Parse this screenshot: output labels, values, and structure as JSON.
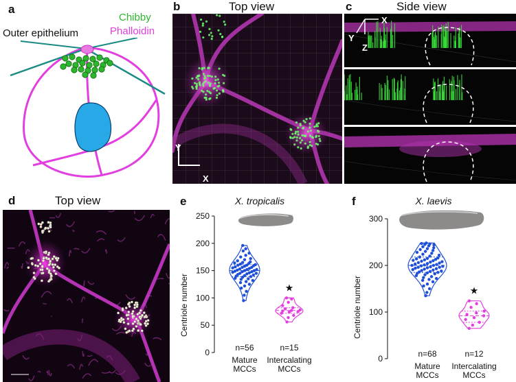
{
  "panels": {
    "a": {
      "label": "a",
      "outer_epithelium": "Outer epithelium",
      "legend_chibby": "Chibby",
      "legend_phalloidin": "Phalloidin",
      "colors": {
        "chibby": "#2db52d",
        "phalloidin": "#e23ee0",
        "epithelium": "#1a8a84",
        "nucleus": "#29a8e8"
      }
    },
    "b": {
      "label": "b",
      "title": "Top view",
      "axis_y": "Y",
      "axis_x": "X"
    },
    "c": {
      "label": "c",
      "title": "Side view",
      "axis_x": "X",
      "axis_y": "Y",
      "axis_z": "Z"
    },
    "d": {
      "label": "d",
      "title": "Top view"
    },
    "e": {
      "label": "e"
    },
    "f": {
      "label": "f"
    }
  },
  "chart_data": [
    {
      "type": "violin",
      "panel": "e",
      "title": "X. tropicalis",
      "ylabel": "Centriole number",
      "ylim": [
        0,
        250
      ],
      "yticks": [
        0,
        50,
        100,
        150,
        200,
        250
      ],
      "categories": [
        "Mature MCCs",
        "Intercalating MCCs"
      ],
      "category_lines": [
        [
          "Mature",
          "MCCs"
        ],
        [
          "Intercalating",
          "MCCs"
        ]
      ],
      "series": [
        {
          "category": "Mature MCCs",
          "n_label": "n=56",
          "color": "#1f4fd6",
          "values": [
            95,
            105,
            112,
            118,
            122,
            125,
            128,
            130,
            132,
            134,
            135,
            136,
            138,
            139,
            140,
            141,
            142,
            143,
            144,
            145,
            145,
            146,
            147,
            148,
            148,
            149,
            150,
            150,
            151,
            152,
            152,
            153,
            154,
            155,
            156,
            156,
            157,
            158,
            159,
            160,
            160,
            161,
            162,
            163,
            164,
            165,
            166,
            168,
            170,
            172,
            175,
            178,
            182,
            186,
            190,
            196
          ]
        },
        {
          "category": "Intercalating MCCs",
          "n_label": "n=15",
          "color": "#e23ee0",
          "values": [
            56,
            64,
            68,
            72,
            74,
            75,
            76,
            77,
            78,
            80,
            82,
            86,
            92,
            98,
            100
          ]
        }
      ],
      "significance": "★"
    },
    {
      "type": "violin",
      "panel": "f",
      "title": "X. laevis",
      "ylabel": "Centriole number",
      "ylim": [
        0,
        300
      ],
      "yticks": [
        0,
        100,
        200,
        300
      ],
      "categories": [
        "Mature MCCs",
        "Intercalating MCCs"
      ],
      "category_lines": [
        [
          "Mature",
          "MCCs"
        ],
        [
          "Intercalating",
          "MCCs"
        ]
      ],
      "series": [
        {
          "category": "Mature MCCs",
          "n_label": "n=68",
          "color": "#1f4fd6",
          "values": [
            135,
            142,
            150,
            156,
            160,
            165,
            168,
            170,
            172,
            174,
            176,
            178,
            180,
            182,
            183,
            184,
            185,
            186,
            187,
            188,
            189,
            190,
            191,
            192,
            193,
            194,
            195,
            196,
            196,
            197,
            198,
            199,
            200,
            200,
            201,
            202,
            203,
            204,
            205,
            206,
            207,
            208,
            209,
            210,
            211,
            212,
            213,
            214,
            215,
            216,
            218,
            220,
            222,
            224,
            226,
            228,
            230,
            232,
            234,
            236,
            238,
            240,
            242,
            244,
            245,
            246,
            247,
            248
          ]
        },
        {
          "category": "Intercalating MCCs",
          "n_label": "n=12",
          "color": "#e23ee0",
          "values": [
            65,
            72,
            78,
            84,
            88,
            92,
            95,
            98,
            102,
            110,
            118,
            124
          ]
        }
      ],
      "significance": "★"
    }
  ]
}
